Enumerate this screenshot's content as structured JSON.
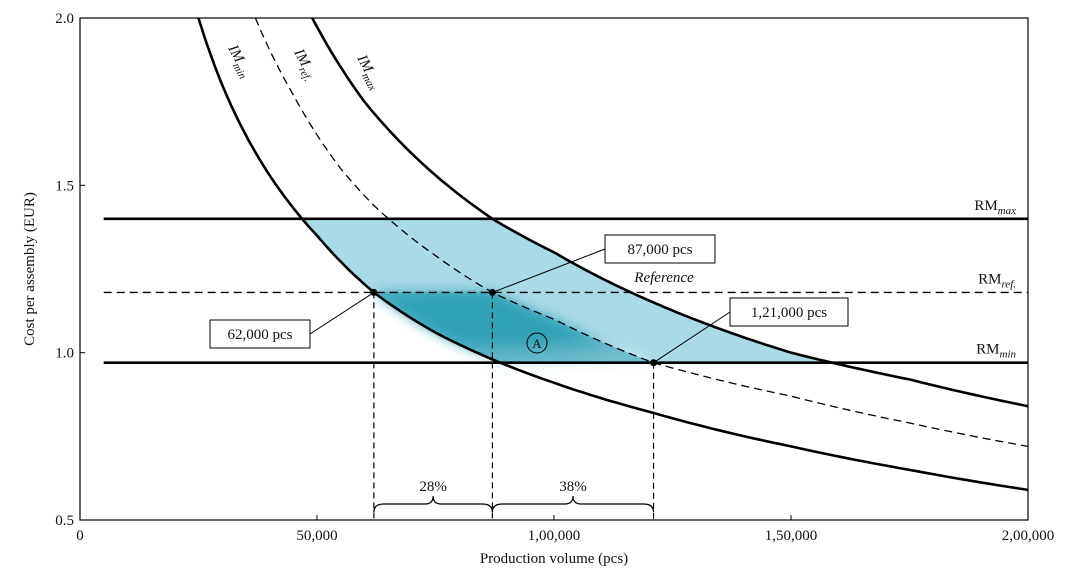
{
  "chart_data": {
    "type": "line",
    "xlabel": "Production volume (pcs)",
    "ylabel": "Cost per assembly (EUR)",
    "xlim": [
      0,
      200000
    ],
    "ylim": [
      0.5,
      2.0
    ],
    "x_ticks": [
      {
        "value": 0,
        "label": "0"
      },
      {
        "value": 50000,
        "label": "50,000"
      },
      {
        "value": 100000,
        "label": "1,00,000"
      },
      {
        "value": 150000,
        "label": "1,50,000"
      },
      {
        "value": 200000,
        "label": "2,00,000"
      }
    ],
    "y_ticks": [
      {
        "value": 0.5,
        "label": "0.5"
      },
      {
        "value": 1.0,
        "label": "1.0"
      },
      {
        "value": 1.5,
        "label": "1.5"
      },
      {
        "value": 2.0,
        "label": "2.0"
      }
    ],
    "curves": [
      {
        "id": "im_min",
        "base": "IM",
        "sub": "min",
        "style": "solid",
        "x": [
          25000,
          30000,
          40000,
          50000,
          62000,
          75000,
          87000,
          100000,
          121000,
          150000,
          175000,
          200000
        ],
        "y": [
          2.0,
          1.8,
          1.53,
          1.35,
          1.18,
          1.06,
          0.98,
          0.91,
          0.82,
          0.72,
          0.65,
          0.59
        ]
      },
      {
        "id": "im_ref",
        "base": "IM",
        "sub": "ref.",
        "style": "dashed",
        "x": [
          37000,
          45000,
          55000,
          62000,
          75000,
          87000,
          100000,
          121000,
          150000,
          175000,
          200000
        ],
        "y": [
          2.0,
          1.77,
          1.55,
          1.44,
          1.29,
          1.18,
          1.1,
          0.97,
          0.87,
          0.79,
          0.72
        ]
      },
      {
        "id": "im_max",
        "base": "IM",
        "sub": "max",
        "style": "solid",
        "x": [
          49000,
          60000,
          75000,
          87000,
          100000,
          121000,
          150000,
          175000,
          200000
        ],
        "y": [
          2.0,
          1.75,
          1.53,
          1.4,
          1.3,
          1.15,
          1.0,
          0.92,
          0.84
        ]
      }
    ],
    "hlines": [
      {
        "id": "rm_max",
        "base": "RM",
        "sub": "max",
        "y": 1.4,
        "style": "solid"
      },
      {
        "id": "rm_ref",
        "base": "RM",
        "sub": "ref.",
        "y": 1.18,
        "style": "dashed"
      },
      {
        "id": "rm_min",
        "base": "RM",
        "sub": "min",
        "y": 0.97,
        "style": "solid"
      }
    ],
    "points": [
      {
        "id": "p62",
        "x": 62000,
        "y": 1.18,
        "label": "62,000 pcs"
      },
      {
        "id": "p87",
        "x": 87000,
        "y": 1.18,
        "label": "87,000 pcs",
        "sublabel": "Reference"
      },
      {
        "id": "p121",
        "x": 121000,
        "y": 0.97,
        "label": "1,21,000 pcs"
      }
    ],
    "region_label": "A",
    "spans": [
      {
        "from": 62000,
        "to": 87000,
        "label": "28%"
      },
      {
        "from": 87000,
        "to": 121000,
        "label": "38%"
      }
    ],
    "grid": false
  },
  "colors": {
    "region_light": "#a8dbe6",
    "region_dark": "#2a9fb6",
    "line": "#000000"
  }
}
